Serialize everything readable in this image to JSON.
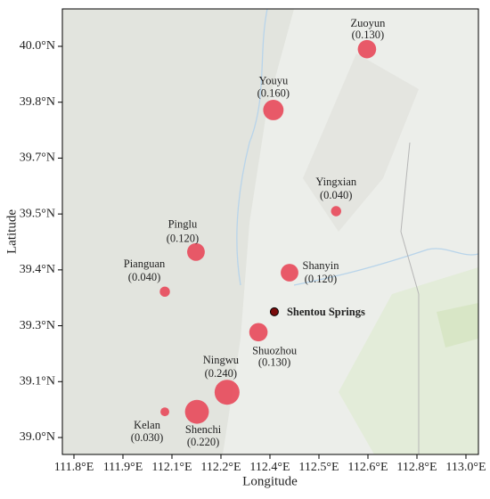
{
  "chart_data": {
    "type": "bubble",
    "x_label": "Longitude",
    "y_label": "Latitude",
    "xlim": [
      111.776,
      113.051
    ],
    "ylim": [
      38.97,
      40.133
    ],
    "xticks": [
      {
        "value": 111.8,
        "label": "111.8°E"
      },
      {
        "value": 111.9,
        "label": "111.9°E"
      },
      {
        "value": 112.1,
        "label": "112.1°E"
      },
      {
        "value": 112.2,
        "label": "112.2°E"
      },
      {
        "value": 112.4,
        "label": "112.4°E"
      },
      {
        "value": 112.5,
        "label": "112.5°E"
      },
      {
        "value": 112.6,
        "label": "112.6°E"
      },
      {
        "value": 112.8,
        "label": "112.8°E"
      },
      {
        "value": 113.0,
        "label": "113.0°E"
      }
    ],
    "yticks": [
      {
        "value": 40.0,
        "label": "40.0°N"
      },
      {
        "value": 39.8,
        "label": "39.8°N"
      },
      {
        "value": 39.7,
        "label": "39.7°N"
      },
      {
        "value": 39.5,
        "label": "39.5°N"
      },
      {
        "value": 39.4,
        "label": "39.4°N"
      },
      {
        "value": 39.3,
        "label": "39.3°N"
      },
      {
        "value": 39.1,
        "label": "39.1°N"
      },
      {
        "value": 39.0,
        "label": "39.0°N"
      }
    ],
    "series": [
      {
        "color": "#e8485a",
        "names": [
          "Zuoyun",
          "Youyu",
          "Yingxian",
          "Pinglu",
          "Pianguan",
          "Shanyin",
          "Shuozhou",
          "Ningwu",
          "Shenchi",
          "Kelan"
        ],
        "x": [
          112.598,
          112.407,
          112.535,
          112.149,
          112.071,
          112.44,
          112.353,
          112.225,
          112.151,
          112.071
        ],
        "y": [
          39.99,
          39.786,
          39.51,
          39.432,
          39.361,
          39.395,
          39.277,
          39.081,
          39.046,
          39.046
        ],
        "values": [
          0.13,
          0.16,
          0.04,
          0.12,
          0.04,
          0.12,
          0.13,
          0.24,
          0.22,
          0.03
        ],
        "value_labels": [
          "(0.130)",
          "(0.160)",
          "(0.040)",
          "(0.120)",
          "(0.040)",
          "(0.120)",
          "(0.130)",
          "(0.240)",
          "(0.220)",
          "(0.030)"
        ]
      }
    ],
    "site": {
      "name": "Shentou Springs",
      "x": 112.409,
      "y": 39.325,
      "color": "#7a0c0c"
    }
  }
}
